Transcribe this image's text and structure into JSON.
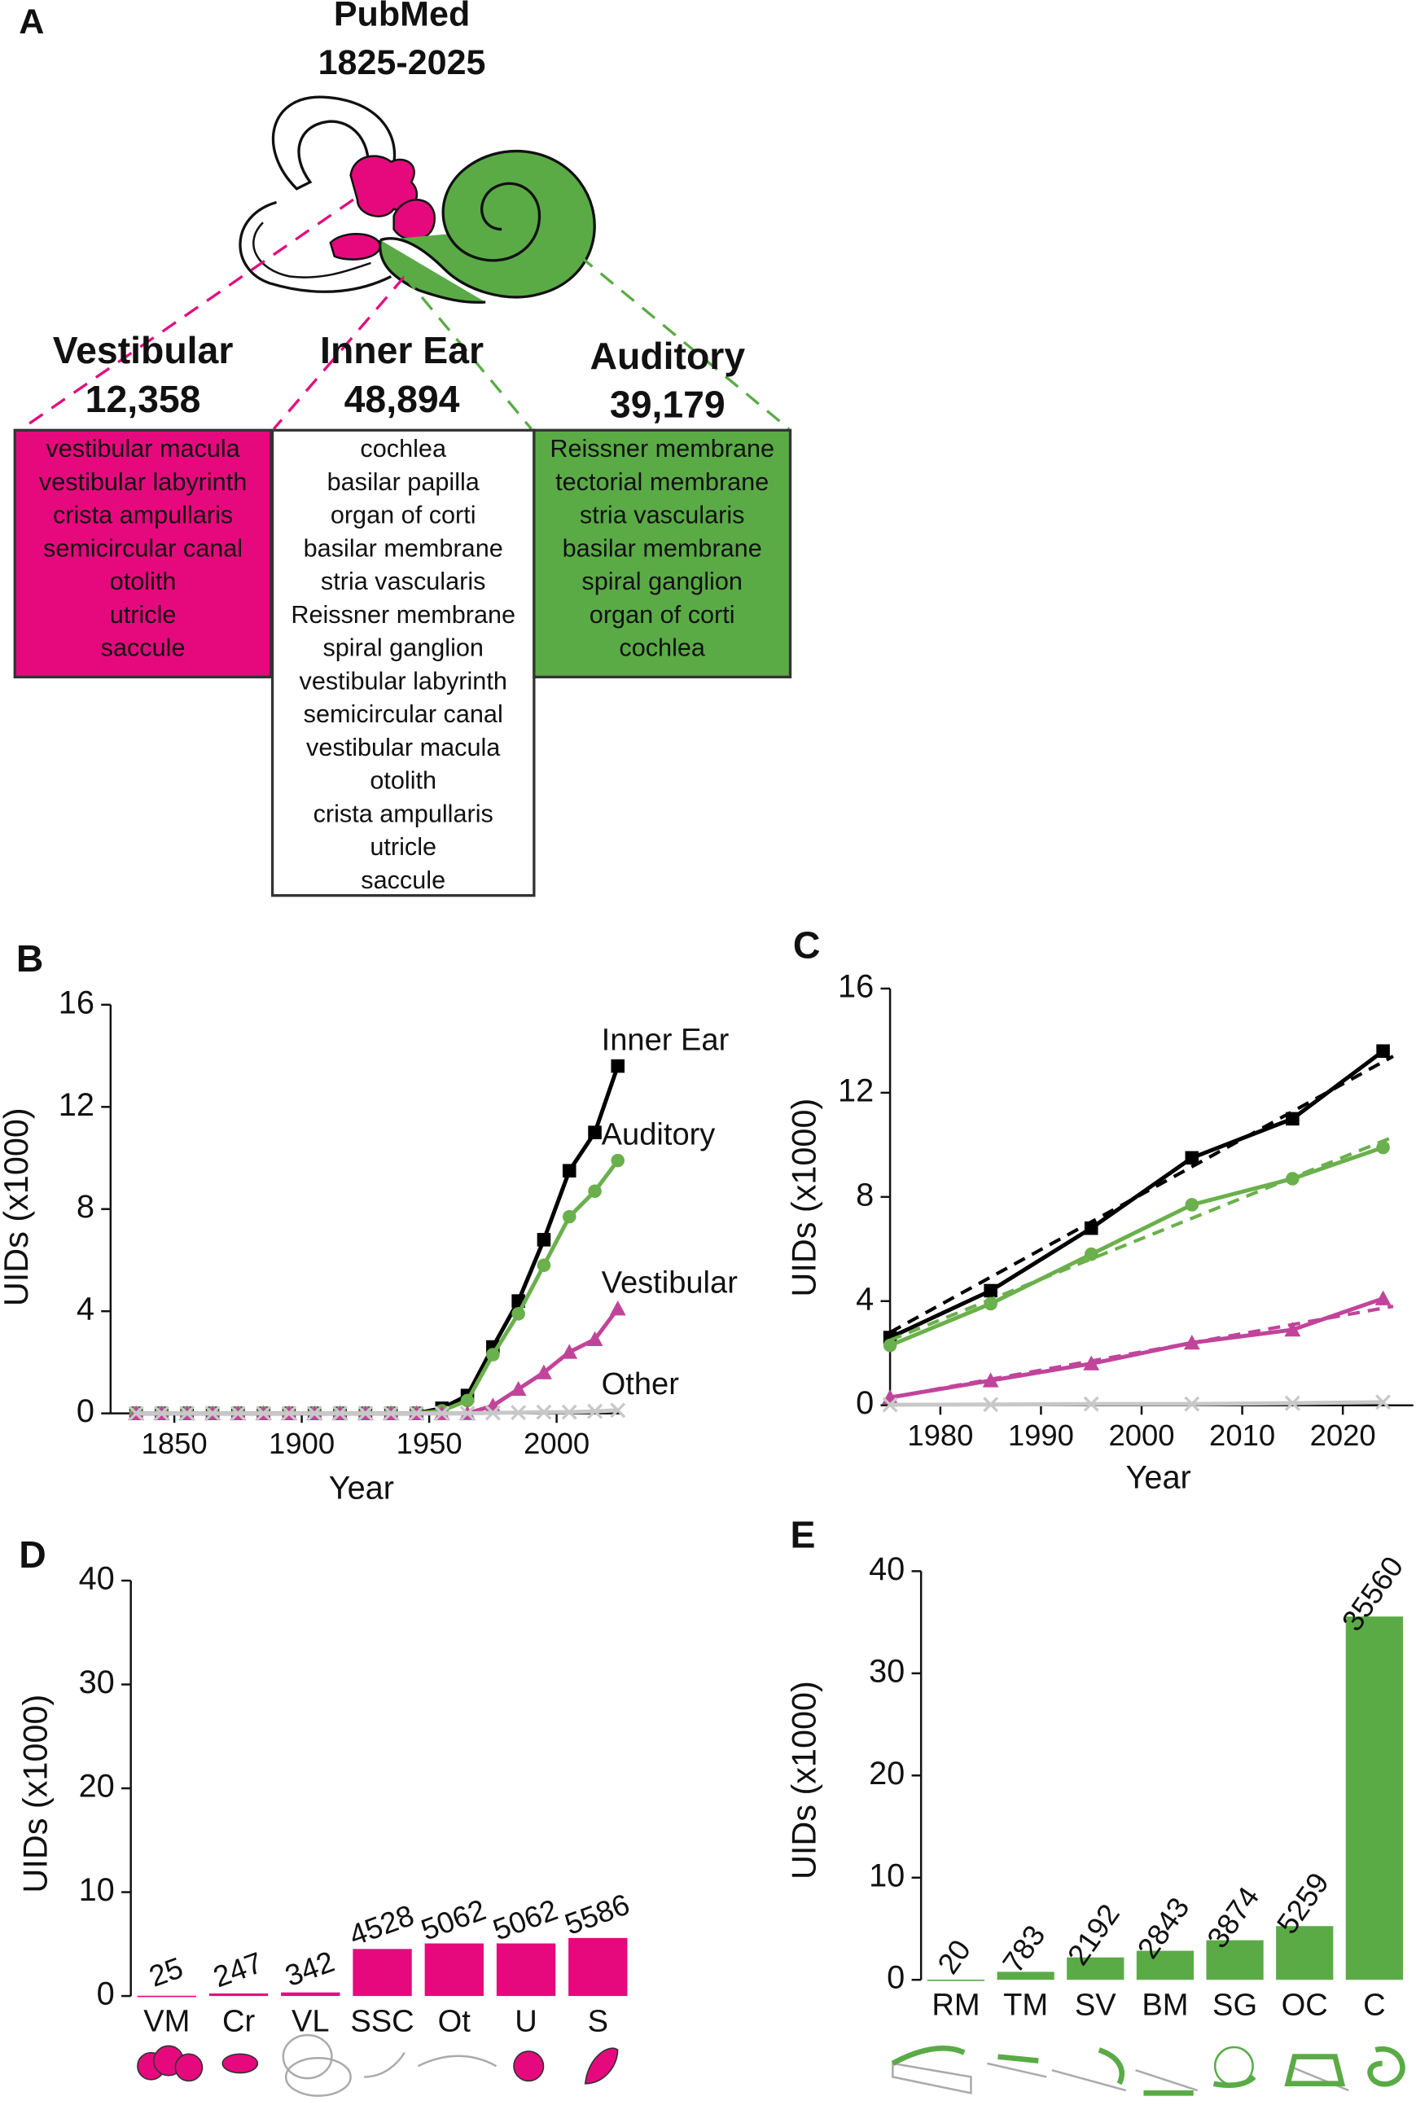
{
  "panel_a": {
    "label": "A",
    "title": "PubMed",
    "years": "1825-2025",
    "groups": [
      {
        "name": "Vestibular",
        "count": "12,358",
        "terms": [
          "vestibular macula",
          "vestibular labyrinth",
          "crista ampullaris",
          "semicircular canal",
          "otolith",
          "utricle",
          "saccule"
        ]
      },
      {
        "name": "Inner Ear",
        "count": "48,894",
        "terms": [
          "cochlea",
          "basilar papilla",
          "organ of corti",
          "basilar membrane",
          "stria vascularis",
          "Reissner membrane",
          "spiral ganglion",
          "vestibular labyrinth",
          "semicircular canal",
          "vestibular macula",
          "otolith",
          "crista ampullaris",
          "utricle",
          "saccule"
        ]
      },
      {
        "name": "Auditory",
        "count": "39,179",
        "terms": [
          "Reissner membrane",
          "tectorial membrane",
          "stria vascularis",
          "basilar membrane",
          "spiral ganglion",
          "organ of corti",
          "cochlea"
        ]
      }
    ]
  },
  "chart_data": [
    {
      "label": "B",
      "type": "line",
      "xlabel": "Year",
      "ylabel": "UIDs (x1000)",
      "x": [
        1835,
        1845,
        1855,
        1865,
        1875,
        1885,
        1895,
        1905,
        1915,
        1925,
        1935,
        1945,
        1955,
        1965,
        1975,
        1985,
        1995,
        2005,
        2015,
        2024
      ],
      "xlim": [
        1825,
        2025
      ],
      "xticks": [
        1850,
        1900,
        1950,
        2000
      ],
      "ylim": [
        0,
        16
      ],
      "yticks": [
        0,
        4,
        8,
        12,
        16
      ],
      "series": [
        {
          "name": "Inner Ear",
          "color": "#000000",
          "marker": "square",
          "values": [
            0,
            0,
            0,
            0,
            0,
            0,
            0,
            0,
            0,
            0,
            0,
            0,
            0.2,
            0.7,
            2.6,
            4.4,
            6.8,
            9.5,
            11,
            13.6
          ]
        },
        {
          "name": "Auditory",
          "color": "#6ab04c",
          "marker": "circle",
          "values": [
            0,
            0,
            0,
            0,
            0,
            0,
            0,
            0,
            0,
            0,
            0,
            0,
            0.1,
            0.5,
            2.3,
            3.9,
            5.8,
            7.7,
            8.7,
            9.9
          ]
        },
        {
          "name": "Vestibular",
          "color": "#c1449a",
          "marker": "triangle",
          "values": [
            0,
            0,
            0,
            0,
            0,
            0,
            0,
            0,
            0,
            0,
            0,
            0,
            0,
            0,
            0.3,
            0.95,
            1.6,
            2.4,
            2.9,
            4.1
          ]
        },
        {
          "name": "Other",
          "color": "#c8c8c8",
          "marker": "x",
          "values": [
            0,
            0,
            0,
            0,
            0,
            0,
            0,
            0,
            0,
            0,
            0,
            0,
            0,
            0,
            0.02,
            0.03,
            0.05,
            0.05,
            0.08,
            0.12
          ]
        }
      ]
    },
    {
      "label": "C",
      "type": "line",
      "xlabel": "Year",
      "ylabel": "UIDs (x1000)",
      "x": [
        1975,
        1985,
        1995,
        2005,
        2015,
        2024
      ],
      "xlim": [
        1975,
        2027
      ],
      "xticks": [
        1980,
        1990,
        2000,
        2010,
        2020
      ],
      "ylim": [
        0,
        16
      ],
      "yticks": [
        0,
        4,
        8,
        12,
        16
      ],
      "series": [
        {
          "color": "#000000",
          "marker": "square",
          "values": [
            2.6,
            4.4,
            6.8,
            9.5,
            11,
            13.6
          ],
          "trend": {
            "x": [
              1975,
              2025
            ],
            "values": [
              2.8,
              13.4
            ]
          }
        },
        {
          "color": "#6ab04c",
          "marker": "circle",
          "values": [
            2.3,
            3.9,
            5.8,
            7.7,
            8.7,
            9.9
          ],
          "trend": {
            "x": [
              1975,
              2025
            ],
            "values": [
              2.5,
              10.3
            ]
          }
        },
        {
          "color": "#c1449a",
          "marker": "triangle",
          "values": [
            0.3,
            0.95,
            1.6,
            2.4,
            2.9,
            4.1
          ],
          "trend": {
            "x": [
              1975,
              2025
            ],
            "values": [
              0.3,
              3.8
            ]
          }
        },
        {
          "color": "#c8c8c8",
          "marker": "x",
          "values": [
            0.02,
            0.03,
            0.05,
            0.05,
            0.08,
            0.12
          ]
        }
      ]
    },
    {
      "label": "D",
      "type": "bar",
      "ylabel": "UIDs (x1000)",
      "color": "#e6097d",
      "categories": [
        "VM",
        "Cr",
        "VL",
        "SSC",
        "Ot",
        "U",
        "S"
      ],
      "values": [
        0.025,
        0.247,
        0.342,
        4.528,
        5.062,
        5.062,
        5.586
      ],
      "value_labels": [
        "25",
        "247",
        "342",
        "4528",
        "5062",
        "5062",
        "5586"
      ],
      "ylim": [
        0,
        40
      ],
      "yticks": [
        0,
        10,
        20,
        30,
        40
      ]
    },
    {
      "label": "E",
      "type": "bar",
      "ylabel": "UIDs (x1000)",
      "color": "#5aab46",
      "categories": [
        "RM",
        "TM",
        "SV",
        "BM",
        "SG",
        "OC",
        "C"
      ],
      "values": [
        0.02,
        0.783,
        2.192,
        2.843,
        3.874,
        5.259,
        35.56
      ],
      "value_labels": [
        "20",
        "783",
        "2192",
        "2843",
        "3874",
        "5259",
        "35560"
      ],
      "ylim": [
        0,
        40
      ],
      "yticks": [
        0,
        10,
        20,
        30,
        40
      ]
    }
  ]
}
